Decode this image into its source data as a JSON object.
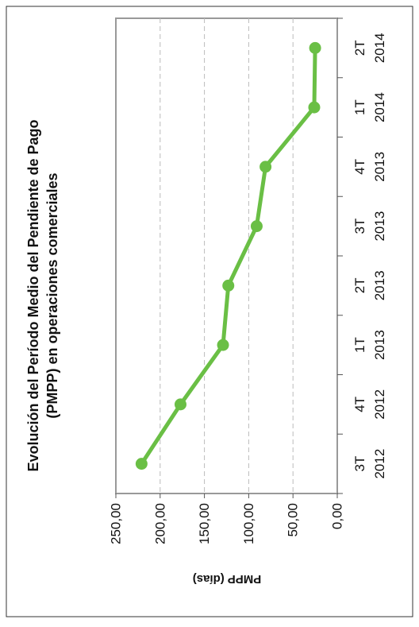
{
  "chart_data": {
    "type": "line",
    "orientation": "rotated-90-clockwise",
    "title_line1": "Evolución del Período Medio del Pendiente de Pago",
    "title_line2": "(PMPP) en operaciones comerciales",
    "ylabel": "PMPP (días)",
    "xlabel": "",
    "ylim": [
      0,
      250
    ],
    "yticks": [
      "0,00",
      "50,00",
      "100,00",
      "150,00",
      "200,00",
      "250,00"
    ],
    "categories": [
      {
        "q": "3T",
        "y": "2012"
      },
      {
        "q": "4T",
        "y": "2012"
      },
      {
        "q": "1T",
        "y": "2013"
      },
      {
        "q": "2T",
        "y": "2013"
      },
      {
        "q": "3T",
        "y": "2013"
      },
      {
        "q": "4T",
        "y": "2013"
      },
      {
        "q": "1T",
        "y": "2014"
      },
      {
        "q": "2T",
        "y": "2014"
      }
    ],
    "series": [
      {
        "values": [
          221.0,
          177.0,
          129.0,
          123.0,
          91.0,
          81.0,
          26.0,
          25.0
        ]
      }
    ],
    "grid": true,
    "line_color": "#6abf45",
    "grid_color": "#bbbbbb"
  }
}
